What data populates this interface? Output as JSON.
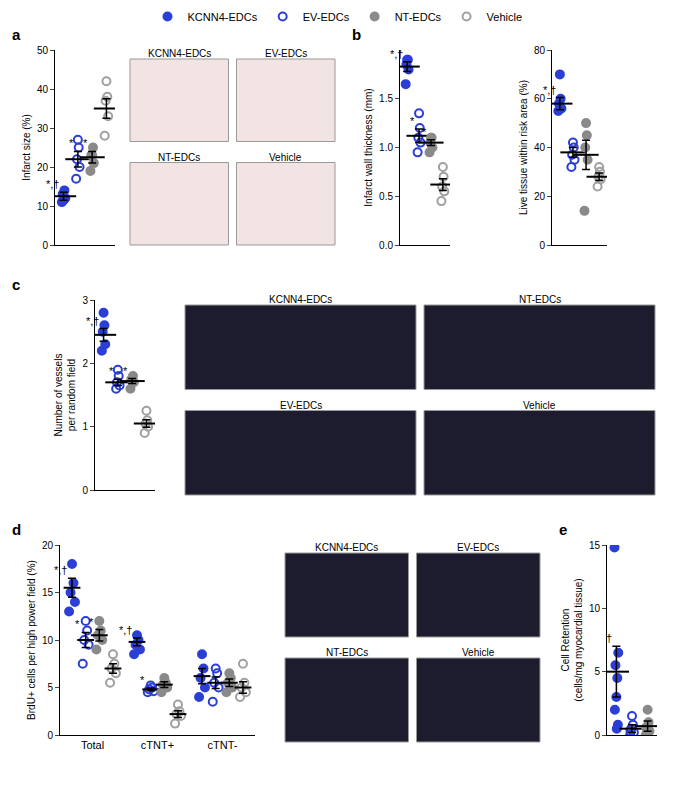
{
  "chart_data": [
    {
      "panel": "a",
      "type": "scatter",
      "legend": "top",
      "tick_labels": "y",
      "ylabel": [
        "Infarct size (%)"
      ],
      "ylim": [
        0,
        50
      ],
      "yticks": [
        0,
        10,
        20,
        30,
        40,
        50
      ],
      "images": [
        "KCNN4-EDCs",
        "EV-EDCs",
        "NT-EDCs",
        "Vehicle"
      ],
      "series": [
        {
          "name": "KCNN4-EDCs",
          "color": "#2b3fd6",
          "marker": "circle",
          "values": [
            11,
            12,
            13,
            14,
            11.5
          ],
          "mean": 12.5,
          "error": 1.0
        },
        {
          "name": "EV-EDCs",
          "color": "#2b3fd6",
          "marker": "circle-open",
          "values": [
            17,
            20,
            22,
            25,
            27
          ],
          "mean": 22,
          "error": 2.0
        },
        {
          "name": "NT-EDCs",
          "color": "#8a8a8a",
          "marker": "circle",
          "values": [
            19,
            21,
            23,
            25,
            23
          ],
          "mean": 22.5,
          "error": 1.5
        },
        {
          "name": "Vehicle",
          "color": "#a0a0a0",
          "marker": "circle-open",
          "values": [
            28,
            33,
            37,
            38,
            42
          ],
          "mean": 35,
          "error": 2.5
        }
      ],
      "annotations": [
        {
          "series": "KCNN4-EDCs",
          "text": "*,†"
        },
        {
          "series": "EV-EDCs",
          "text": "*"
        },
        {
          "series": "NT-EDCs",
          "text": "*"
        }
      ]
    },
    {
      "panel": "b",
      "type": "scatter",
      "tick_labels": "y",
      "ylabel": [
        "Infarct wall thickness (mm)"
      ],
      "ylim": [
        0,
        2
      ],
      "yticks": [
        {
          "value": 0,
          "label": "0.0"
        },
        {
          "value": 0.5,
          "label": "0.5"
        },
        {
          "value": 1,
          "label": "1.0"
        },
        {
          "value": 1.5,
          "label": "1.5"
        }
      ],
      "series": [
        {
          "name": "KCNN4-EDCs",
          "color": "#2b3fd6",
          "marker": "circle",
          "values": [
            1.65,
            1.8,
            1.85,
            1.9,
            1.9
          ],
          "mean": 1.83,
          "error": 0.05
        },
        {
          "name": "EV-EDCs",
          "color": "#2b3fd6",
          "marker": "circle-open",
          "values": [
            0.95,
            1.05,
            1.1,
            1.2,
            1.35
          ],
          "mean": 1.12,
          "error": 0.07
        },
        {
          "name": "NT-EDCs",
          "color": "#8a8a8a",
          "marker": "circle",
          "values": [
            0.95,
            1.0,
            1.05,
            1.1,
            1.1
          ],
          "mean": 1.05,
          "error": 0.03
        },
        {
          "name": "Vehicle",
          "color": "#a0a0a0",
          "marker": "circle-open",
          "values": [
            0.45,
            0.55,
            0.6,
            0.7,
            0.8
          ],
          "mean": 0.62,
          "error": 0.06
        }
      ],
      "annotations": [
        {
          "series": "KCNN4-EDCs",
          "text": "*,†"
        },
        {
          "series": "EV-EDCs",
          "text": "*"
        },
        {
          "series": "NT-EDCs",
          "text": "*"
        }
      ]
    },
    {
      "type": "scatter",
      "tick_labels": "y",
      "ylabel": [
        "Live tissue within risk area (%)"
      ],
      "ylim": [
        0,
        80
      ],
      "yticks": [
        0,
        20,
        40,
        60,
        80
      ],
      "series": [
        {
          "name": "KCNN4-EDCs",
          "color": "#2b3fd6",
          "marker": "circle",
          "values": [
            55,
            56,
            58,
            60,
            70
          ],
          "mean": 58,
          "error": 2.5
        },
        {
          "name": "EV-EDCs",
          "color": "#2b3fd6",
          "marker": "circle-open",
          "values": [
            32,
            35,
            37,
            40,
            42
          ],
          "mean": 38,
          "error": 2
        },
        {
          "name": "NT-EDCs",
          "color": "#8a8a8a",
          "marker": "circle",
          "values": [
            14,
            35,
            40,
            45,
            50
          ],
          "mean": 37,
          "error": 6
        },
        {
          "name": "Vehicle",
          "color": "#a0a0a0",
          "marker": "circle-open",
          "values": [
            24,
            27,
            28,
            30,
            32
          ],
          "mean": 28,
          "error": 1.5
        }
      ],
      "annotations": [
        {
          "series": "KCNN4-EDCs",
          "text": "*,†"
        }
      ]
    },
    {
      "panel": "c",
      "type": "scatter",
      "tick_labels": "y",
      "ylabel": [
        "Number of vessels",
        "per random field"
      ],
      "ylim": [
        0,
        3
      ],
      "yticks": [
        0,
        1,
        2,
        3
      ],
      "images": [
        "KCNN4-EDCs",
        "NT-EDCs",
        "EV-EDCs",
        "Vehicle"
      ],
      "series": [
        {
          "name": "KCNN4-EDCs",
          "color": "#2b3fd6",
          "marker": "circle",
          "values": [
            2.2,
            2.3,
            2.5,
            2.6,
            2.8
          ],
          "mean": 2.45,
          "error": 0.1
        },
        {
          "name": "EV-EDCs",
          "color": "#2b3fd6",
          "marker": "circle-open",
          "values": [
            1.6,
            1.65,
            1.7,
            1.8,
            1.9
          ],
          "mean": 1.7,
          "error": 0.05
        },
        {
          "name": "NT-EDCs",
          "color": "#8a8a8a",
          "marker": "circle",
          "values": [
            1.6,
            1.7,
            1.75,
            1.8,
            1.75
          ],
          "mean": 1.72,
          "error": 0.04
        },
        {
          "name": "Vehicle",
          "color": "#a0a0a0",
          "marker": "circle-open",
          "values": [
            0.9,
            1.0,
            1.05,
            1.1,
            1.25
          ],
          "mean": 1.05,
          "error": 0.06
        }
      ],
      "annotations": [
        {
          "series": "KCNN4-EDCs",
          "text": "*,†"
        },
        {
          "series": "EV-EDCs",
          "text": "*"
        },
        {
          "series": "NT-EDCs",
          "text": "*"
        }
      ]
    },
    {
      "panel": "d",
      "type": "scatter",
      "ylabel": [
        "BrdU+ cells per high power field (%)"
      ],
      "ylim": [
        0,
        20
      ],
      "yticks": [
        0,
        5,
        10,
        15,
        20
      ],
      "categories": [
        "Total",
        "cTNT+",
        "cTNT-"
      ],
      "images": [
        "KCNN4-EDCs",
        "EV-EDCs",
        "NT-EDCs",
        "Vehicle"
      ],
      "series": [
        {
          "name": "KCNN4-EDCs",
          "color": "#2b3fd6",
          "marker": "circle",
          "values": [
            [
              13,
              14,
              15,
              16,
              18
            ],
            [
              8.5,
              9,
              9.5,
              10,
              10.5
            ],
            [
              4,
              5,
              6,
              7,
              8.5
            ]
          ],
          "mean": [
            15.5,
            9.8,
            6.2
          ],
          "error": [
            1.0,
            0.4,
            0.8
          ]
        },
        {
          "name": "EV-EDCs",
          "color": "#2b3fd6",
          "marker": "circle-open",
          "values": [
            [
              7.5,
              9.5,
              10,
              11,
              12
            ],
            [
              4.5,
              4.6,
              4.8,
              5,
              5.2
            ],
            [
              3.5,
              5,
              5.5,
              6.5,
              7
            ]
          ],
          "mean": [
            10,
            4.8,
            5.5
          ],
          "error": [
            0.8,
            0.15,
            0.6
          ]
        },
        {
          "name": "NT-EDCs",
          "color": "#8a8a8a",
          "marker": "circle",
          "values": [
            [
              9,
              10,
              10.5,
              11,
              12
            ],
            [
              4.5,
              5,
              5.3,
              5.5,
              6
            ],
            [
              4.5,
              5,
              5.5,
              6,
              6.5
            ]
          ],
          "mean": [
            10.5,
            5.3,
            5.5
          ],
          "error": [
            0.6,
            0.3,
            0.4
          ]
        },
        {
          "name": "Vehicle",
          "color": "#a0a0a0",
          "marker": "circle-open",
          "values": [
            [
              5.5,
              6.5,
              7,
              7.5,
              8.5
            ],
            [
              1.2,
              2,
              2.2,
              2.5,
              3.2
            ],
            [
              4,
              4.5,
              5,
              5.5,
              7.5
            ]
          ],
          "mean": [
            7,
            2.2,
            5
          ],
          "error": [
            0.5,
            0.35,
            0.6
          ]
        }
      ],
      "annotations": [
        {
          "series": "KCNN4-EDCs",
          "category": "Total",
          "text": "*,†"
        },
        {
          "series": "EV-EDCs",
          "category": "Total",
          "text": "*"
        },
        {
          "series": "NT-EDCs",
          "category": "Total",
          "text": "*"
        },
        {
          "series": "KCNN4-EDCs",
          "category": "cTNT+",
          "text": "*,†"
        },
        {
          "series": "EV-EDCs",
          "category": "cTNT+",
          "text": "*"
        }
      ]
    },
    {
      "panel": "e",
      "type": "scatter",
      "tick_labels": "y",
      "ylabel": [
        "Cell Retention",
        "(cells/mg myocardial tissue)"
      ],
      "ylim": [
        0,
        15
      ],
      "yticks": [
        0,
        5,
        10,
        15
      ],
      "series": [
        {
          "name": "KCNN4-EDCs",
          "color": "#2b3fd6",
          "marker": "circle",
          "values": [
            14.8,
            6.5,
            5.5,
            4.5,
            3,
            2,
            0.8,
            0.5
          ],
          "mean": 5,
          "error": 2.0
        },
        {
          "name": "EV-EDCs",
          "color": "#2b3fd6",
          "marker": "circle-open",
          "values": [
            0,
            0.2,
            0.5,
            0.8,
            1.5,
            0.3
          ],
          "mean": 0.5,
          "error": 0.3
        },
        {
          "name": "NT-EDCs",
          "color": "#8a8a8a",
          "marker": "circle",
          "values": [
            0,
            0.3,
            0.5,
            1,
            2,
            0.6
          ],
          "mean": 0.7,
          "error": 0.4
        }
      ],
      "annotations": [
        {
          "series": "KCNN4-EDCs",
          "text": "†"
        }
      ]
    }
  ]
}
